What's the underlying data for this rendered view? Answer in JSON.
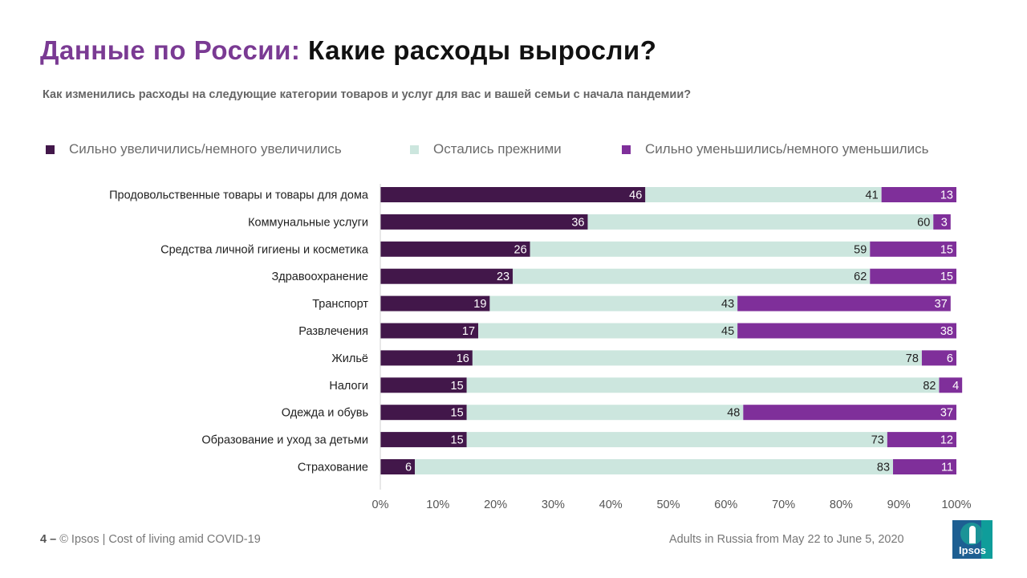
{
  "title": {
    "accent": "Данные по России:",
    "main": "Какие расходы выросли?"
  },
  "subtitle": "Как изменились расходы на следующие категории товаров и услуг для вас и вашей семьи с начала пандемии?",
  "legend": [
    {
      "label": "Сильно увеличились/немного увеличились",
      "color": "#42174a"
    },
    {
      "label": "Остались прежними",
      "color": "#cce6de"
    },
    {
      "label": "Сильно уменьшились/немного уменьшились",
      "color": "#7f2f9a"
    }
  ],
  "chart_data": {
    "type": "bar",
    "orientation": "horizontal",
    "stacked": true,
    "categories": [
      "Продовольственные товары и товары для дома",
      "Коммунальные  услуги",
      "Средства личной  гигиены и косметика",
      "Здравоохранение",
      "Транспорт",
      "Развлечения",
      "Жильё",
      "Налоги",
      "Одежда  и обувь",
      "Образование и уход за детьми",
      "Страхование"
    ],
    "series": [
      {
        "name": "Сильно увеличились/немного увеличились",
        "color": "#42174a",
        "label_color": "#ffffff",
        "values": [
          46,
          36,
          26,
          23,
          19,
          17,
          16,
          15,
          15,
          15,
          6
        ]
      },
      {
        "name": "Остались прежними",
        "color": "#cce6de",
        "label_color": "#222222",
        "values": [
          41,
          60,
          59,
          62,
          43,
          45,
          78,
          82,
          48,
          73,
          83
        ]
      },
      {
        "name": "Сильно уменьшились/немного уменьшились",
        "color": "#7f2f9a",
        "label_color": "#ffffff",
        "values": [
          13,
          3,
          15,
          15,
          37,
          38,
          6,
          4,
          37,
          12,
          11
        ]
      }
    ],
    "xlim": [
      0,
      100
    ],
    "xticks": [
      "0%",
      "10%",
      "20%",
      "30%",
      "40%",
      "50%",
      "60%",
      "70%",
      "80%",
      "90%",
      "100%"
    ],
    "grid": false,
    "legend_position": "top"
  },
  "footer": {
    "page": "4 –",
    "source": "© Ipsos | Cost of living amid COVID-19",
    "note": "Adults in Russia from May 22 to June 5, 2020"
  },
  "logo": {
    "text": "Ipsos"
  }
}
